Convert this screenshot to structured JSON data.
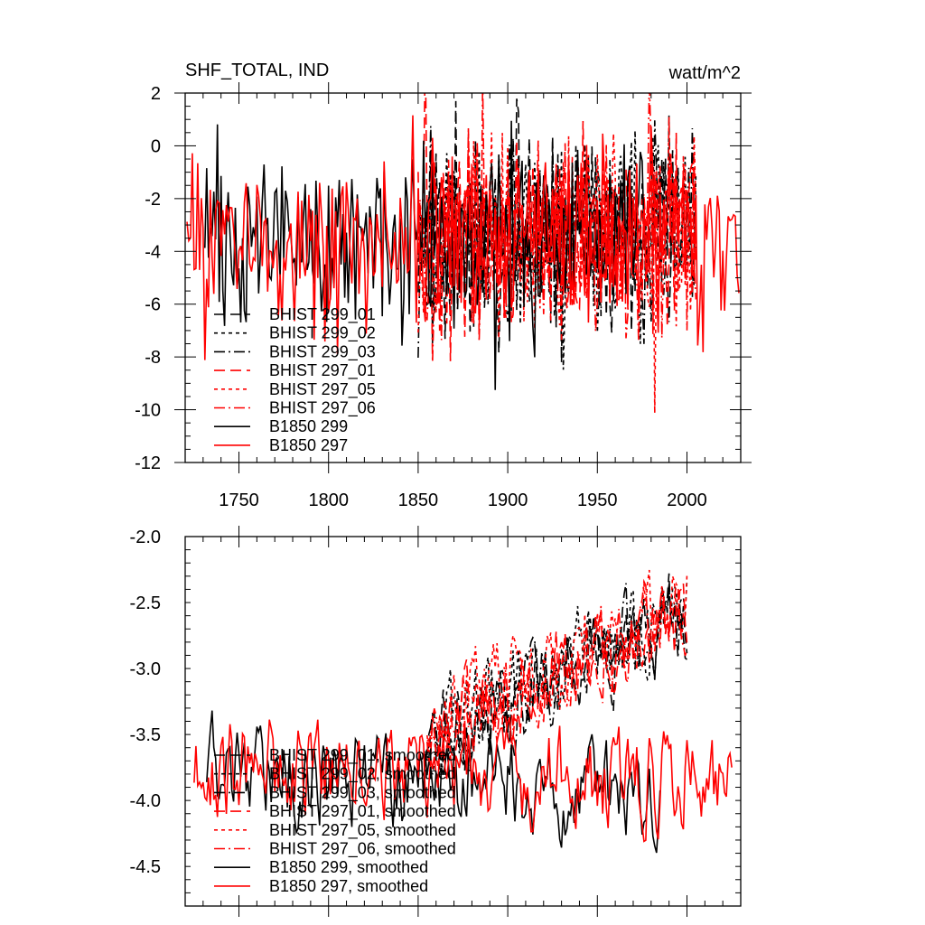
{
  "chart_data": [
    {
      "type": "line",
      "title": "SHF_TOTAL, IND",
      "units_label": "watt/m^2",
      "xlim": [
        1720,
        2030
      ],
      "ylim": [
        -12,
        2
      ],
      "xticks": [
        1750,
        1800,
        1850,
        1900,
        1950,
        2000
      ],
      "yticks": [
        2,
        0,
        -2,
        -4,
        -6,
        -8,
        -10,
        -12
      ],
      "ytick_labels": [
        "2",
        "0",
        "-2",
        "-4",
        "-6",
        "-8",
        "-10",
        "-12"
      ],
      "legend_position": "lower-left",
      "series": [
        {
          "name": "BHIST 299_01",
          "color": "#000000",
          "dash": "long-dash",
          "start": 1850,
          "end": 2005,
          "mean": -3.4,
          "amp": 1.7,
          "seed": 11
        },
        {
          "name": "BHIST 299_02",
          "color": "#000000",
          "dash": "short-dash",
          "start": 1850,
          "end": 2005,
          "mean": -3.3,
          "amp": 1.7,
          "seed": 23
        },
        {
          "name": "BHIST 299_03",
          "color": "#000000",
          "dash": "dash-dot",
          "start": 1850,
          "end": 2005,
          "mean": -3.4,
          "amp": 1.7,
          "seed": 37
        },
        {
          "name": "BHIST 297_01",
          "color": "#ff0000",
          "dash": "long-dash",
          "start": 1850,
          "end": 2005,
          "mean": -3.3,
          "amp": 1.8,
          "seed": 41
        },
        {
          "name": "BHIST 297_05",
          "color": "#ff0000",
          "dash": "short-dash",
          "start": 1850,
          "end": 2005,
          "mean": -3.3,
          "amp": 1.8,
          "seed": 53
        },
        {
          "name": "BHIST 297_06",
          "color": "#ff0000",
          "dash": "dash-dot",
          "start": 1850,
          "end": 2005,
          "mean": -3.4,
          "amp": 1.8,
          "seed": 67
        },
        {
          "name": "B1850 299",
          "color": "#000000",
          "dash": "solid",
          "start": 1731,
          "end": 1979,
          "mean": -3.6,
          "amp": 1.6,
          "seed": 71
        },
        {
          "name": "B1850 297",
          "color": "#ff0000",
          "dash": "solid",
          "start": 1721,
          "end": 2029,
          "mean": -3.6,
          "amp": 1.6,
          "seed": 83
        }
      ]
    },
    {
      "type": "line",
      "title": "",
      "xlim": [
        1720,
        2030
      ],
      "ylim": [
        -4.8,
        -2.0
      ],
      "xticks": [
        1750,
        1800,
        1850,
        1900,
        1950,
        2000
      ],
      "yticks": [
        -2.0,
        -2.5,
        -3.0,
        -3.5,
        -4.0,
        -4.5
      ],
      "ytick_labels": [
        "-2.0",
        "-2.5",
        "-3.0",
        "-3.5",
        "-4.0",
        "-4.5"
      ],
      "legend_position": "lower-left",
      "series": [
        {
          "name": "BHIST 299_01, smoothed",
          "color": "#000000",
          "dash": "long-dash",
          "start": 1855,
          "end": 2000,
          "v0": -3.55,
          "v1": -2.55,
          "amp": 0.26,
          "seed": 111
        },
        {
          "name": "BHIST 299_02, smoothed",
          "color": "#000000",
          "dash": "short-dash",
          "start": 1855,
          "end": 2000,
          "v0": -3.5,
          "v1": -2.5,
          "amp": 0.27,
          "seed": 123
        },
        {
          "name": "BHIST 299_03, smoothed",
          "color": "#000000",
          "dash": "dash-dot",
          "start": 1855,
          "end": 2000,
          "v0": -3.55,
          "v1": -2.6,
          "amp": 0.26,
          "seed": 137
        },
        {
          "name": "BHIST 297_01, smoothed",
          "color": "#ff0000",
          "dash": "long-dash",
          "start": 1855,
          "end": 2000,
          "v0": -3.45,
          "v1": -2.6,
          "amp": 0.25,
          "seed": 141
        },
        {
          "name": "BHIST 297_05, smoothed",
          "color": "#ff0000",
          "dash": "short-dash",
          "start": 1855,
          "end": 2000,
          "v0": -3.4,
          "v1": -2.45,
          "amp": 0.26,
          "seed": 153
        },
        {
          "name": "BHIST 297_06, smoothed",
          "color": "#ff0000",
          "dash": "dash-dot",
          "start": 1855,
          "end": 2000,
          "v0": -3.45,
          "v1": -2.55,
          "amp": 0.25,
          "seed": 167
        },
        {
          "name": "B1850 299, smoothed",
          "color": "#000000",
          "dash": "solid",
          "start": 1732,
          "end": 1985,
          "v0": -3.75,
          "v1": -3.95,
          "amp": 0.28,
          "seed": 171
        },
        {
          "name": "B1850 297, smoothed",
          "color": "#ff0000",
          "dash": "solid",
          "start": 1725,
          "end": 2025,
          "v0": -3.75,
          "v1": -3.8,
          "amp": 0.3,
          "seed": 183
        }
      ]
    }
  ]
}
